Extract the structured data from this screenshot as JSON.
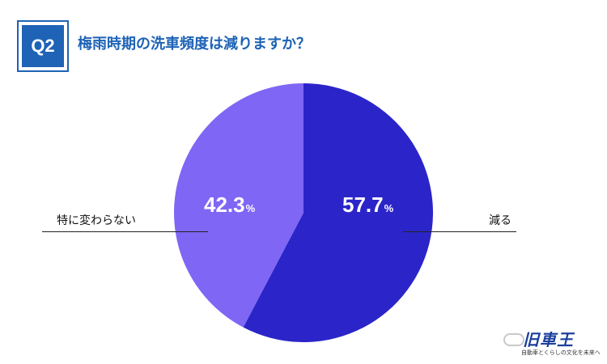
{
  "badge": "Q2",
  "title": "梅雨時期の洗車頻度は減りますか？",
  "colors": {
    "accent": "#1e63b6",
    "slice_reduce": "#2b25c9",
    "slice_nochange": "#7f66f5"
  },
  "logo": {
    "main": "旧車王",
    "sub": "自動車とくらしの文化を未来へ"
  },
  "chart_data": {
    "type": "pie",
    "title": "梅雨時期の洗車頻度は減りますか？",
    "slices": [
      {
        "label": "減る",
        "value": 57.7,
        "display": "57.7",
        "unit": "%",
        "color": "#2b25c9"
      },
      {
        "label": "特に変わらない",
        "value": 42.3,
        "display": "42.3",
        "unit": "%",
        "color": "#7f66f5"
      }
    ],
    "start_angle": "top (12 o'clock)",
    "direction": "clockwise",
    "legend": "none"
  }
}
